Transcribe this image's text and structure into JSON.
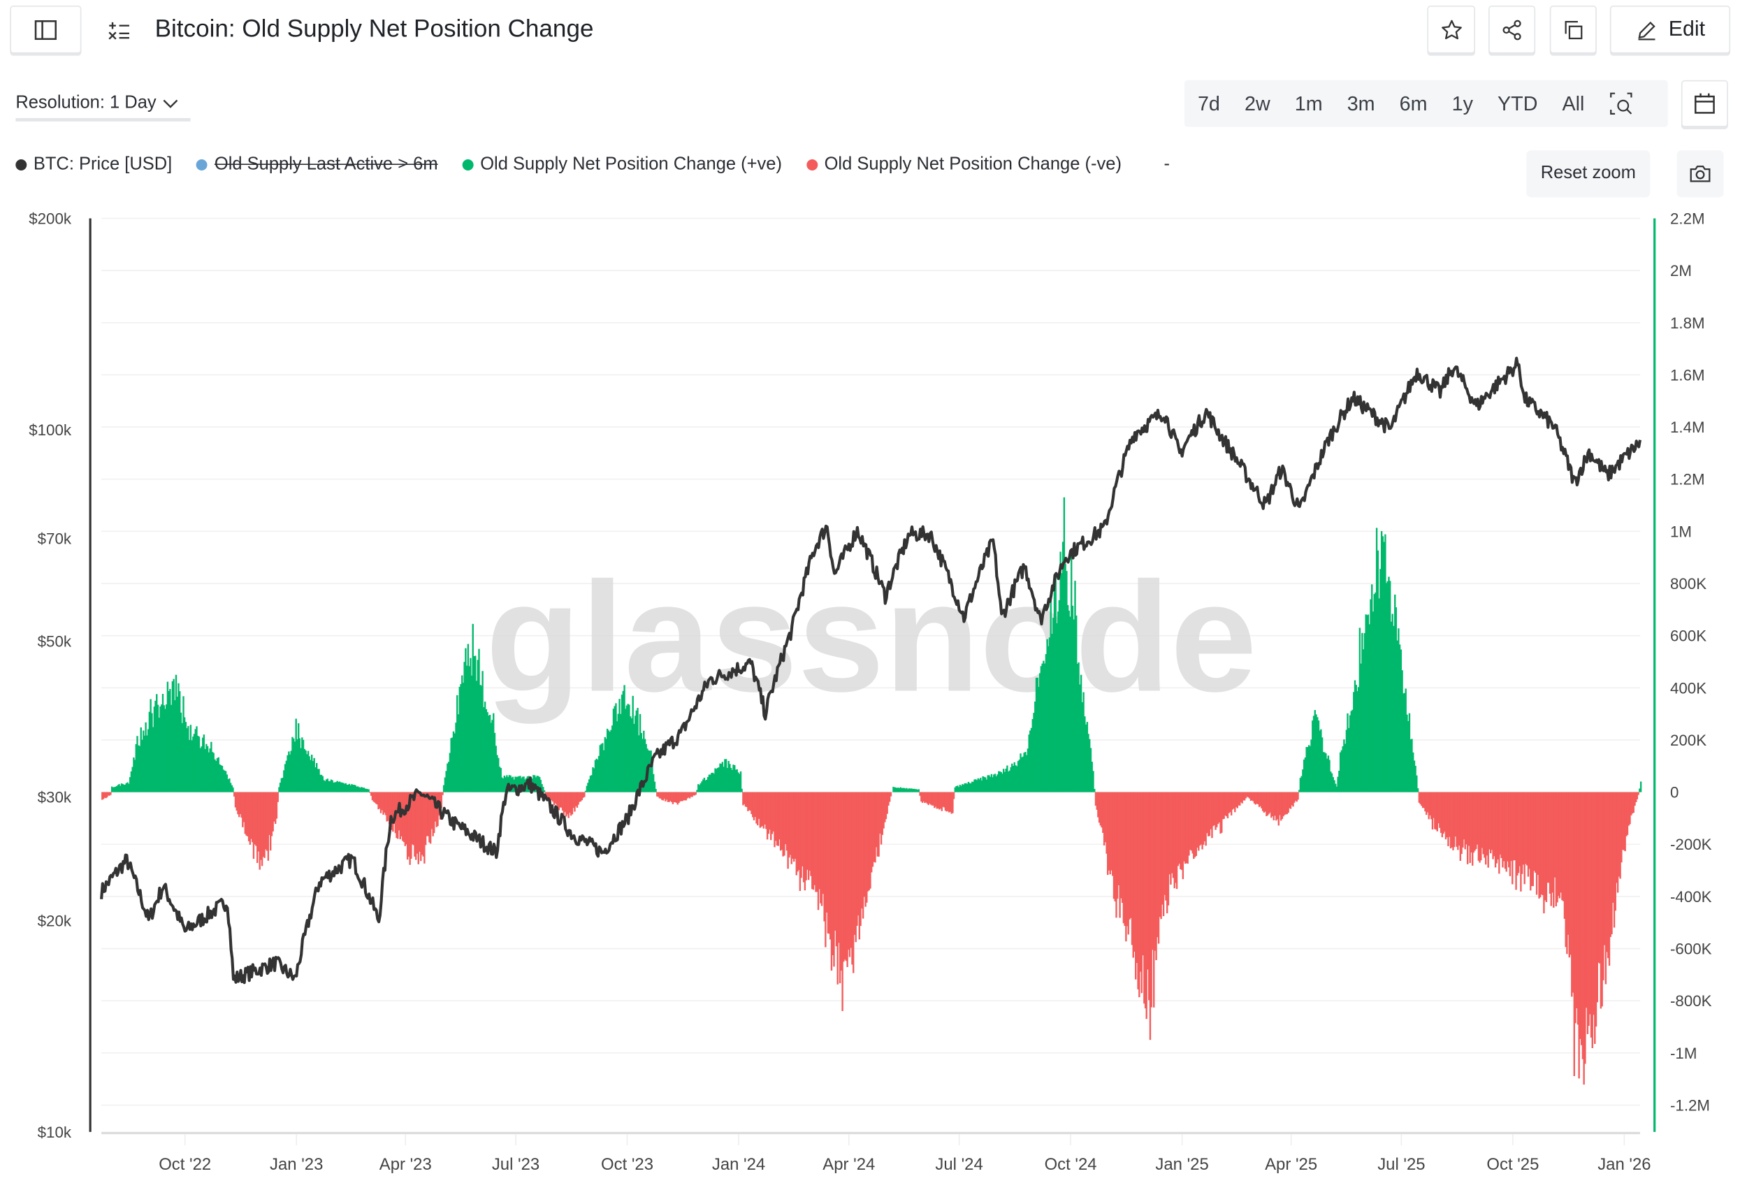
{
  "header": {
    "title": "Bitcoin: Old Supply Net Position Change",
    "edit_label": "Edit",
    "icons": [
      "sidebar-toggle-icon",
      "list-formula-icon",
      "star-icon",
      "share-icon",
      "copy-icon",
      "pencil-icon"
    ]
  },
  "toolbar": {
    "resolution_label": "Resolution: 1 Day",
    "ranges": [
      "7d",
      "2w",
      "1m",
      "3m",
      "6m",
      "1y",
      "YTD",
      "All"
    ],
    "reset_zoom_label": "Reset zoom"
  },
  "legend": [
    {
      "label": "BTC: Price [USD]",
      "color": "#333333",
      "hidden": false
    },
    {
      "label": "Old Supply Last Active > 6m",
      "color": "#6aa5d8",
      "hidden": true
    },
    {
      "label": "Old Supply Net Position Change (+ve)",
      "color": "#00b86b",
      "hidden": false
    },
    {
      "label": "Old Supply Net Position Change (-ve)",
      "color": "#f45b5b",
      "hidden": false
    }
  ],
  "legend_extra": "-",
  "watermark": "glassnode",
  "chart_data": {
    "type": "bar",
    "title": "Bitcoin: Old Supply Net Position Change",
    "x_range": [
      "2022-07-24",
      "2026-01-14"
    ],
    "x_ticks": [
      {
        "date": "2022-10-01",
        "label": "Oct '22"
      },
      {
        "date": "2023-01-01",
        "label": "Jan '23"
      },
      {
        "date": "2023-04-01",
        "label": "Apr '23"
      },
      {
        "date": "2023-07-01",
        "label": "Jul '23"
      },
      {
        "date": "2023-10-01",
        "label": "Oct '23"
      },
      {
        "date": "2024-01-01",
        "label": "Jan '24"
      },
      {
        "date": "2024-04-01",
        "label": "Apr '24"
      },
      {
        "date": "2024-07-01",
        "label": "Jul '24"
      },
      {
        "date": "2024-10-01",
        "label": "Oct '24"
      },
      {
        "date": "2025-01-01",
        "label": "Jan '25"
      },
      {
        "date": "2025-04-01",
        "label": "Apr '25"
      },
      {
        "date": "2025-07-01",
        "label": "Jul '25"
      },
      {
        "date": "2025-10-01",
        "label": "Oct '25"
      },
      {
        "date": "2026-01-01",
        "label": "Jan '26"
      }
    ],
    "y_left": {
      "scale": "log",
      "range": [
        10000,
        200000
      ],
      "ticks": [
        {
          "v": 200000,
          "label": "$200k"
        },
        {
          "v": 100000,
          "label": "$100k"
        },
        {
          "v": 70000,
          "label": "$70k"
        },
        {
          "v": 50000,
          "label": "$50k"
        },
        {
          "v": 30000,
          "label": "$30k"
        },
        {
          "v": 20000,
          "label": "$20k"
        },
        {
          "v": 10000,
          "label": "$10k"
        }
      ]
    },
    "y_right": {
      "scale": "linear",
      "range": [
        -1300000,
        2200000
      ],
      "ticks": [
        {
          "v": 2200000,
          "label": "2.2M"
        },
        {
          "v": 2000000,
          "label": "2M"
        },
        {
          "v": 1800000,
          "label": "1.8M"
        },
        {
          "v": 1600000,
          "label": "1.6M"
        },
        {
          "v": 1400000,
          "label": "1.4M"
        },
        {
          "v": 1200000,
          "label": "1.2M"
        },
        {
          "v": 1000000,
          "label": "1M"
        },
        {
          "v": 800000,
          "label": "800K"
        },
        {
          "v": 600000,
          "label": "600K"
        },
        {
          "v": 400000,
          "label": "400K"
        },
        {
          "v": 200000,
          "label": "200K"
        },
        {
          "v": 0,
          "label": "0"
        },
        {
          "v": -200000,
          "label": "-200K"
        },
        {
          "v": -400000,
          "label": "-400K"
        },
        {
          "v": -600000,
          "label": "-600K"
        },
        {
          "v": -800000,
          "label": "-800K"
        },
        {
          "v": -1000000,
          "label": "-1M"
        },
        {
          "v": -1200000,
          "label": "-1.2M"
        }
      ]
    },
    "series": [
      {
        "name": "BTC: Price [USD]",
        "type": "line",
        "color": "#333333",
        "axis": "left",
        "points": [
          [
            "2022-07-24",
            22000
          ],
          [
            "2022-08-14",
            24400
          ],
          [
            "2022-09-01",
            20000
          ],
          [
            "2022-09-13",
            22400
          ],
          [
            "2022-10-01",
            19300
          ],
          [
            "2022-11-05",
            21300
          ],
          [
            "2022-11-10",
            16500
          ],
          [
            "2022-12-15",
            17400
          ],
          [
            "2022-12-31",
            16500
          ],
          [
            "2023-01-20",
            22700
          ],
          [
            "2023-02-16",
            24500
          ],
          [
            "2023-03-10",
            20000
          ],
          [
            "2023-03-20",
            28000
          ],
          [
            "2023-04-14",
            30400
          ],
          [
            "2023-05-10",
            27600
          ],
          [
            "2023-06-15",
            25000
          ],
          [
            "2023-06-23",
            30500
          ],
          [
            "2023-07-13",
            31300
          ],
          [
            "2023-08-17",
            26500
          ],
          [
            "2023-09-11",
            25000
          ],
          [
            "2023-10-01",
            27900
          ],
          [
            "2023-10-24",
            34000
          ],
          [
            "2023-11-15",
            37000
          ],
          [
            "2023-12-08",
            44000
          ],
          [
            "2024-01-11",
            46500
          ],
          [
            "2024-01-23",
            39500
          ],
          [
            "2024-02-14",
            52000
          ],
          [
            "2024-03-04",
            68000
          ],
          [
            "2024-03-14",
            73000
          ],
          [
            "2024-03-20",
            62000
          ],
          [
            "2024-04-08",
            72000
          ],
          [
            "2024-05-01",
            58000
          ],
          [
            "2024-05-21",
            71000
          ],
          [
            "2024-06-07",
            71000
          ],
          [
            "2024-07-05",
            54000
          ],
          [
            "2024-07-29",
            69500
          ],
          [
            "2024-08-05",
            54000
          ],
          [
            "2024-08-24",
            64000
          ],
          [
            "2024-09-06",
            53500
          ],
          [
            "2024-09-27",
            66000
          ],
          [
            "2024-10-29",
            72500
          ],
          [
            "2024-11-12",
            88000
          ],
          [
            "2024-11-22",
            98500
          ],
          [
            "2024-12-17",
            106000
          ],
          [
            "2024-12-30",
            92500
          ],
          [
            "2025-01-21",
            106000
          ],
          [
            "2025-02-02",
            98000
          ],
          [
            "2025-02-27",
            84000
          ],
          [
            "2025-03-11",
            78000
          ],
          [
            "2025-03-24",
            88000
          ],
          [
            "2025-04-08",
            76500
          ],
          [
            "2025-05-02",
            97000
          ],
          [
            "2025-05-22",
            111000
          ],
          [
            "2025-06-22",
            100000
          ],
          [
            "2025-07-14",
            121000
          ],
          [
            "2025-08-02",
            113000
          ],
          [
            "2025-08-13",
            123000
          ],
          [
            "2025-09-01",
            108000
          ],
          [
            "2025-10-06",
            124500
          ],
          [
            "2025-10-10",
            111000
          ],
          [
            "2025-11-04",
            101000
          ],
          [
            "2025-11-21",
            84000
          ],
          [
            "2025-12-03",
            93000
          ],
          [
            "2025-12-18",
            86000
          ],
          [
            "2026-01-14",
            96000
          ]
        ]
      },
      {
        "name": "Old Supply Net Position Change",
        "type": "bar",
        "color_pos": "#00b86b",
        "color_neg": "#f45b5b",
        "axis": "right",
        "points": [
          [
            "2022-07-24",
            -30000
          ],
          [
            "2022-07-31",
            -10000
          ],
          [
            "2022-08-01",
            20000
          ],
          [
            "2022-08-15",
            40000
          ],
          [
            "2022-08-22",
            200000
          ],
          [
            "2022-09-05",
            320000
          ],
          [
            "2022-09-23",
            430000
          ],
          [
            "2022-10-01",
            250000
          ],
          [
            "2022-10-15",
            200000
          ],
          [
            "2022-10-30",
            120000
          ],
          [
            "2022-11-09",
            20000
          ],
          [
            "2022-11-11",
            -60000
          ],
          [
            "2022-12-03",
            -300000
          ],
          [
            "2022-12-15",
            -100000
          ],
          [
            "2022-12-17",
            20000
          ],
          [
            "2022-12-31",
            240000
          ],
          [
            "2023-01-15",
            120000
          ],
          [
            "2023-01-23",
            50000
          ],
          [
            "2023-02-15",
            30000
          ],
          [
            "2023-03-01",
            10000
          ],
          [
            "2023-03-04",
            -30000
          ],
          [
            "2023-04-11",
            -280000
          ],
          [
            "2023-04-29",
            -100000
          ],
          [
            "2023-05-02",
            30000
          ],
          [
            "2023-05-23",
            590000
          ],
          [
            "2023-06-10",
            300000
          ],
          [
            "2023-06-19",
            60000
          ],
          [
            "2023-07-20",
            60000
          ],
          [
            "2023-07-26",
            -20000
          ],
          [
            "2023-08-13",
            -100000
          ],
          [
            "2023-08-26",
            -20000
          ],
          [
            "2023-08-28",
            30000
          ],
          [
            "2023-09-28",
            400000
          ],
          [
            "2023-10-20",
            150000
          ],
          [
            "2023-10-25",
            -20000
          ],
          [
            "2023-11-10",
            -50000
          ],
          [
            "2023-11-26",
            -10000
          ],
          [
            "2023-11-28",
            30000
          ],
          [
            "2023-12-20",
            120000
          ],
          [
            "2024-01-02",
            80000
          ],
          [
            "2024-01-04",
            -50000
          ],
          [
            "2024-02-04",
            -220000
          ],
          [
            "2024-03-07",
            -420000
          ],
          [
            "2024-03-28",
            -800000
          ],
          [
            "2024-04-15",
            -400000
          ],
          [
            "2024-05-05",
            -20000
          ],
          [
            "2024-05-07",
            20000
          ],
          [
            "2024-05-28",
            10000
          ],
          [
            "2024-05-30",
            -40000
          ],
          [
            "2024-06-25",
            -80000
          ],
          [
            "2024-06-27",
            20000
          ],
          [
            "2024-08-05",
            80000
          ],
          [
            "2024-08-24",
            150000
          ],
          [
            "2024-09-26",
            960000
          ],
          [
            "2024-10-19",
            80000
          ],
          [
            "2024-10-21",
            -50000
          ],
          [
            "2024-11-06",
            -400000
          ],
          [
            "2024-12-03",
            -820000
          ],
          [
            "2024-12-20",
            -400000
          ],
          [
            "2025-01-18",
            -200000
          ],
          [
            "2025-02-21",
            -30000
          ],
          [
            "2025-02-23",
            -20000
          ],
          [
            "2025-03-20",
            -120000
          ],
          [
            "2025-04-06",
            -30000
          ],
          [
            "2025-04-08",
            50000
          ],
          [
            "2025-04-20",
            300000
          ],
          [
            "2025-05-08",
            20000
          ],
          [
            "2025-05-10",
            100000
          ],
          [
            "2025-06-16",
            1000000
          ],
          [
            "2025-07-13",
            80000
          ],
          [
            "2025-07-15",
            -50000
          ],
          [
            "2025-08-09",
            -200000
          ],
          [
            "2025-09-24",
            -300000
          ],
          [
            "2025-11-09",
            -420000
          ],
          [
            "2025-11-25",
            -1100000
          ],
          [
            "2025-12-16",
            -700000
          ],
          [
            "2026-01-03",
            -150000
          ],
          [
            "2026-01-12",
            -10000
          ],
          [
            "2026-01-14",
            40000
          ]
        ]
      }
    ],
    "grid": true,
    "legend_position": "top-left"
  }
}
